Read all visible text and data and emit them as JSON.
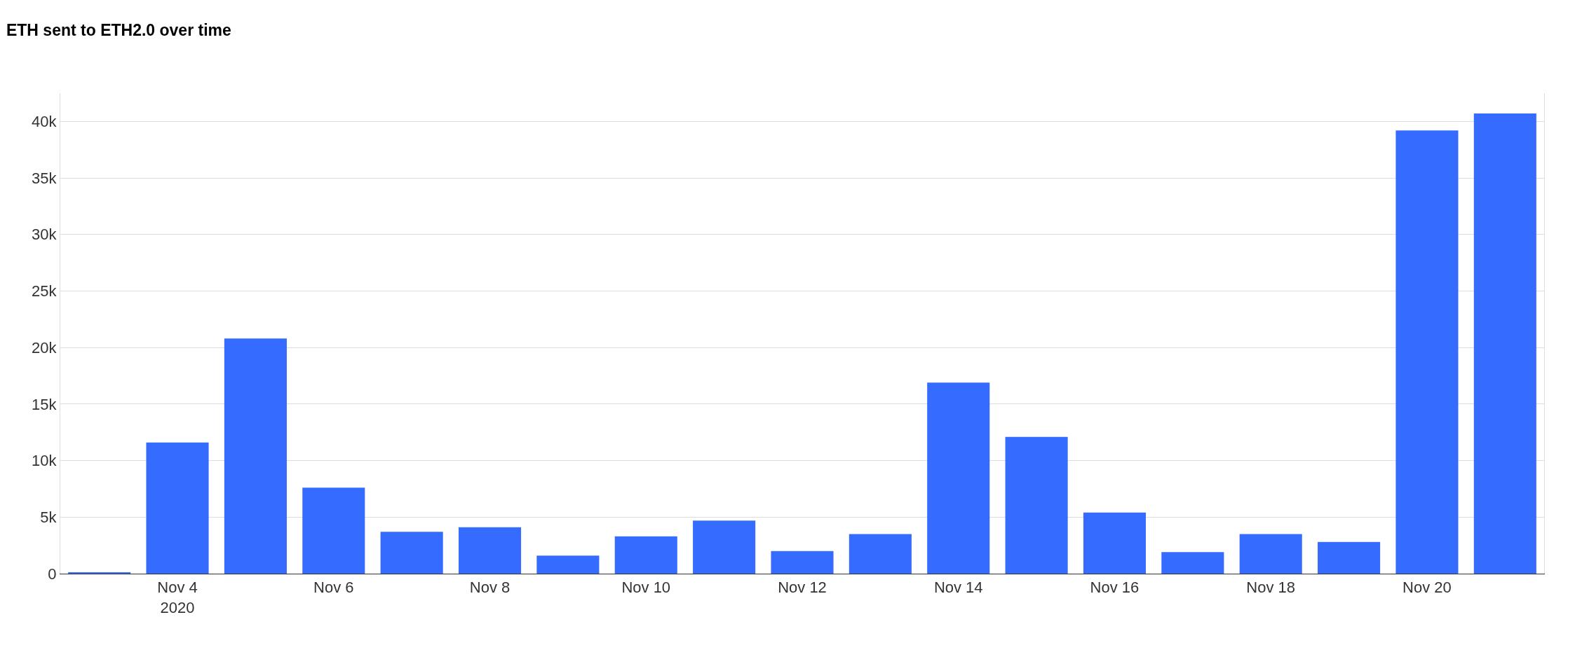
{
  "chart_data": {
    "type": "bar",
    "title": "ETH sent to ETH2.0 over time",
    "x": [
      "2020-11-03",
      "2020-11-04",
      "2020-11-05",
      "2020-11-06",
      "2020-11-07",
      "2020-11-08",
      "2020-11-09",
      "2020-11-10",
      "2020-11-11",
      "2020-11-12",
      "2020-11-13",
      "2020-11-14",
      "2020-11-15",
      "2020-11-16",
      "2020-11-17",
      "2020-11-18",
      "2020-11-19",
      "2020-11-20",
      "2020-11-21"
    ],
    "values": [
      100,
      11600,
      20800,
      7600,
      3700,
      4100,
      1600,
      3300,
      4700,
      2000,
      3500,
      16900,
      12100,
      5400,
      1900,
      3500,
      2800,
      39200,
      40700
    ],
    "color": "#356bff",
    "xlim": [
      "2020-11-02T12:00",
      "2020-11-21T12:00"
    ],
    "xticks": [
      {
        "value": "2020-11-04",
        "label": "Nov 4\n2020"
      },
      {
        "value": "2020-11-06",
        "label": "Nov 6"
      },
      {
        "value": "2020-11-08",
        "label": "Nov 8"
      },
      {
        "value": "2020-11-10",
        "label": "Nov 10"
      },
      {
        "value": "2020-11-12",
        "label": "Nov 12"
      },
      {
        "value": "2020-11-14",
        "label": "Nov 14"
      },
      {
        "value": "2020-11-16",
        "label": "Nov 16"
      },
      {
        "value": "2020-11-18",
        "label": "Nov 18"
      },
      {
        "value": "2020-11-20",
        "label": "Nov 20"
      }
    ],
    "ylim": [
      0,
      42500
    ],
    "yticks": [
      0,
      {
        "value": 5000,
        "label": "5k"
      },
      {
        "value": 10000,
        "label": "10k"
      },
      {
        "value": 15000,
        "label": "15k"
      },
      {
        "value": 20000,
        "label": "20k"
      },
      {
        "value": 25000,
        "label": "25k"
      },
      {
        "value": 30000,
        "label": "30k"
      },
      {
        "value": 35000,
        "label": "35k"
      },
      {
        "value": 40000,
        "label": "40k"
      }
    ],
    "grid": "y",
    "legend": false
  }
}
